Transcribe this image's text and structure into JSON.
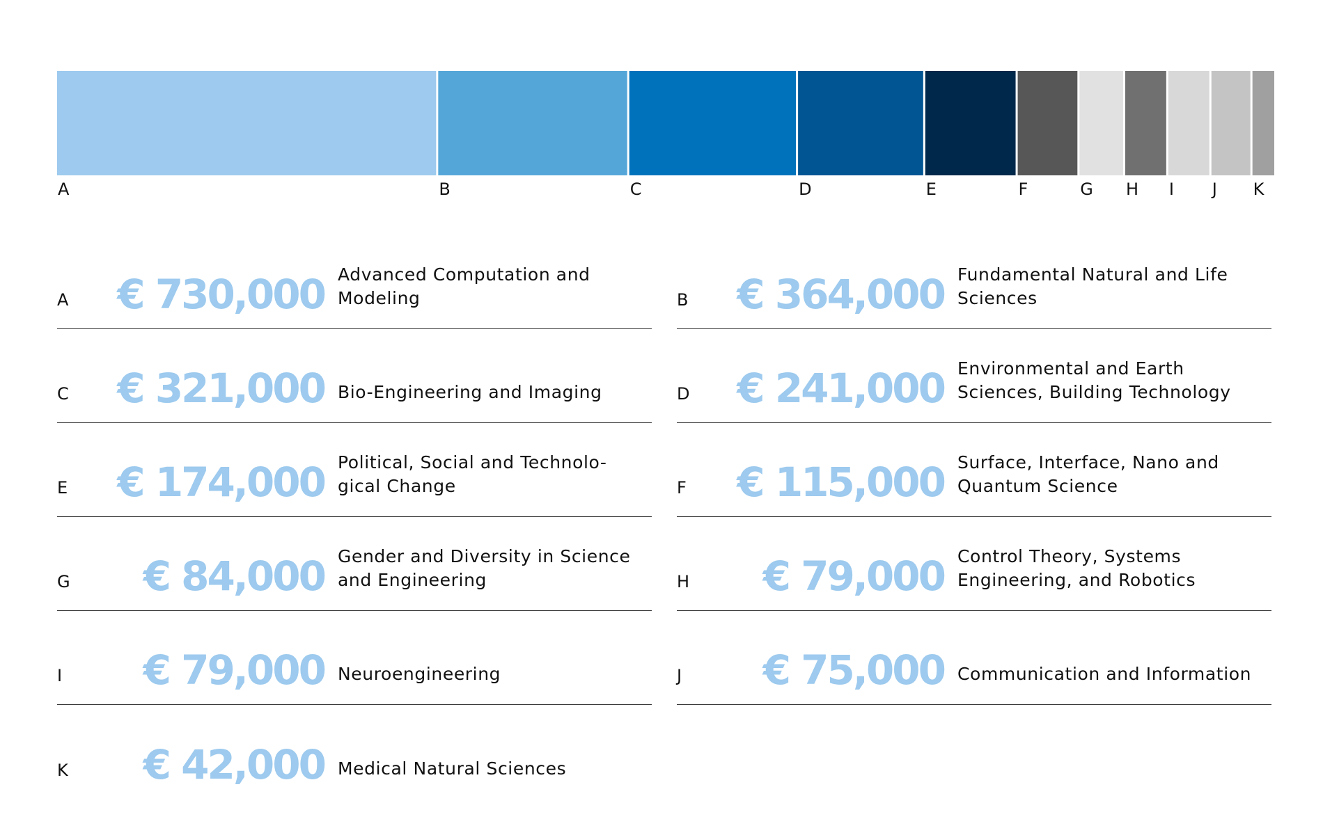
{
  "chart_data": {
    "type": "bar",
    "orientation": "stacked-horizontal",
    "currency": "€",
    "total": 2304000,
    "colors": [
      "#9dcaee",
      "#55a6d8",
      "#0072bb",
      "#005592",
      "#00284a",
      "#575757",
      "#e1e1e1",
      "#707070",
      "#d8d8d8",
      "#c4c4c4",
      "#a0a0a0"
    ],
    "categories": [
      "A",
      "B",
      "C",
      "D",
      "E",
      "F",
      "G",
      "H",
      "I",
      "J",
      "K"
    ],
    "values": [
      730000,
      364000,
      321000,
      241000,
      174000,
      115000,
      84000,
      79000,
      79000,
      75000,
      42000
    ],
    "rows": [
      {
        "letter": "A",
        "amount": "€ 730,000",
        "lines": [
          "Advanced Computation and",
          "Modeling"
        ]
      },
      {
        "letter": "B",
        "amount": "€ 364,000",
        "lines": [
          "Fundamental Natural and Life",
          "Sciences"
        ]
      },
      {
        "letter": "C",
        "amount": "€ 321,000",
        "lines": [
          "Bio-Engineering and Imaging"
        ]
      },
      {
        "letter": "D",
        "amount": "€ 241,000",
        "lines": [
          "Environmental and Earth",
          "Sciences, Building Technology"
        ]
      },
      {
        "letter": "E",
        "amount": "€ 174,000",
        "lines": [
          "Political, Social and Technolo-",
          "gical Change"
        ]
      },
      {
        "letter": "F",
        "amount": "€ 115,000",
        "lines": [
          "Surface, Interface, Nano and",
          "Quantum Science"
        ]
      },
      {
        "letter": "G",
        "amount": "€ 84,000",
        "lines": [
          "Gender and Diversity in Science",
          "and Engineering"
        ]
      },
      {
        "letter": "H",
        "amount": "€ 79,000",
        "lines": [
          "Control Theory, Systems",
          "Engineering, and Robotics"
        ]
      },
      {
        "letter": "I",
        "amount": "€ 79,000",
        "lines": [
          "Neuroengineering"
        ]
      },
      {
        "letter": "J",
        "amount": "€ 75,000",
        "lines": [
          "Communication and Information"
        ]
      },
      {
        "letter": "K",
        "amount": "€ 42,000",
        "lines": [
          "Medical Natural Sciences"
        ]
      }
    ]
  }
}
